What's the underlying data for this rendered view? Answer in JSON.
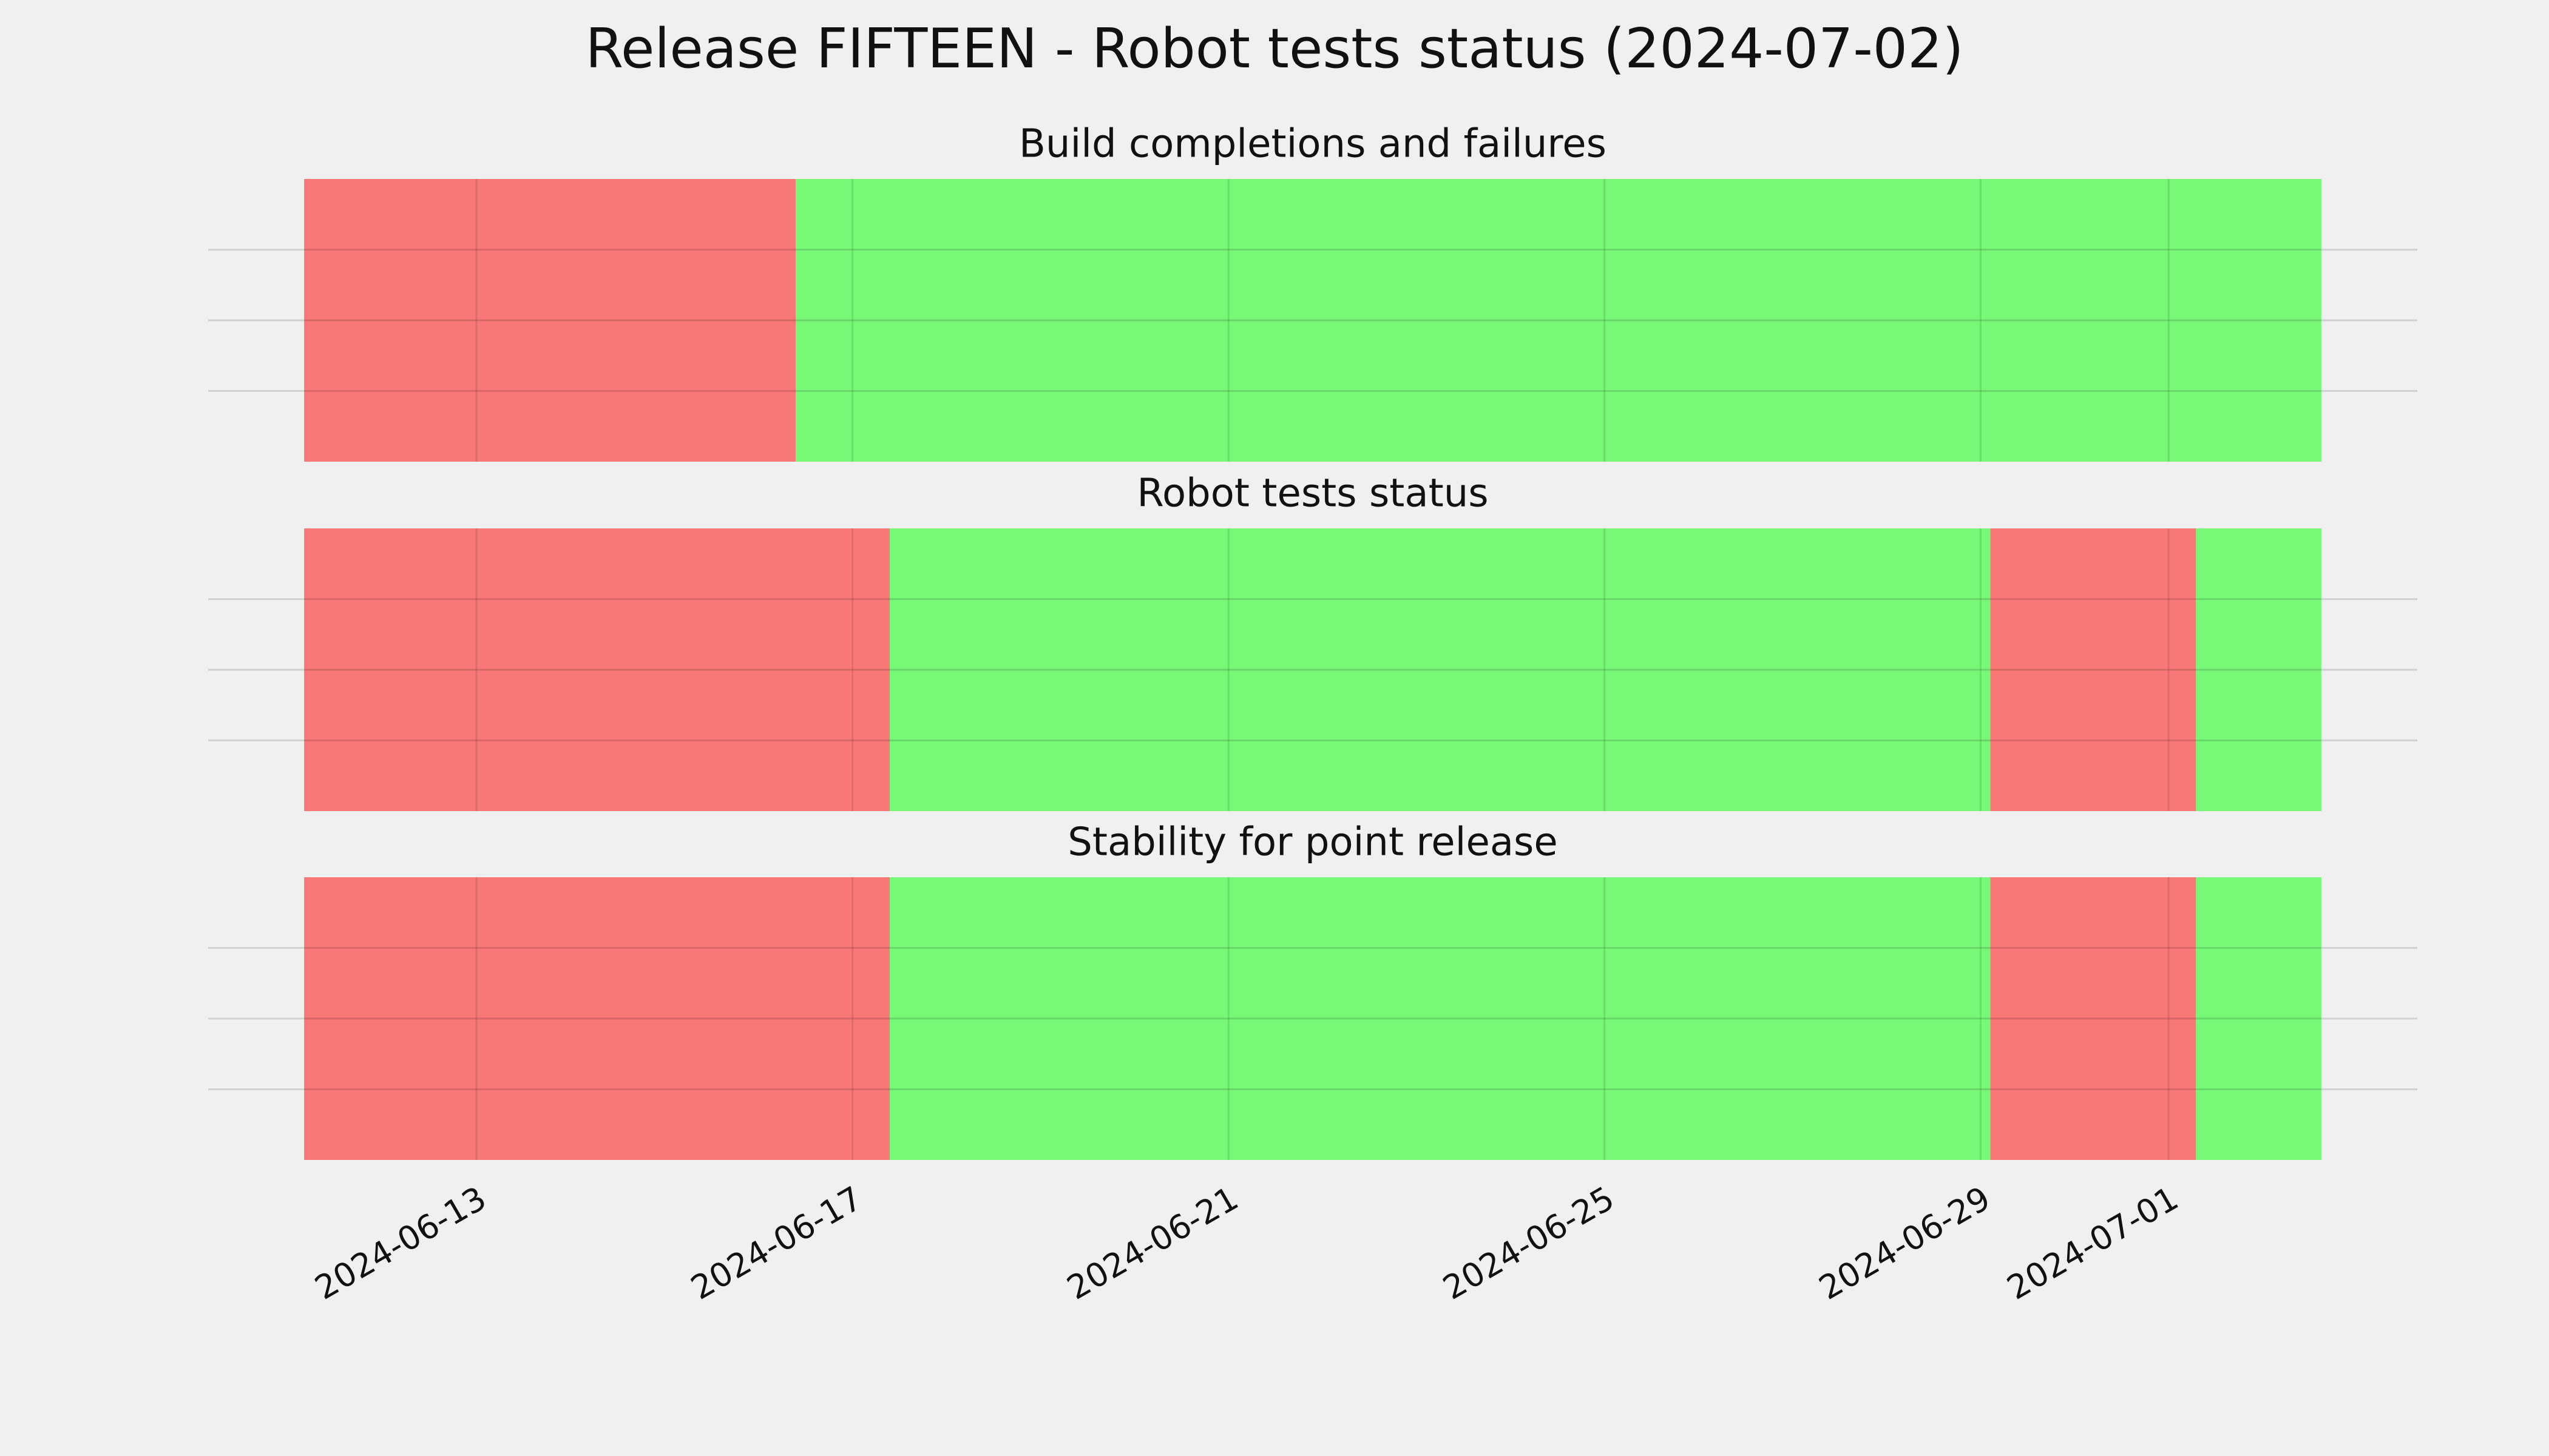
{
  "title": "Release FIFTEEN - Robot tests status (2024-07-02)",
  "chart_data": [
    {
      "type": "span",
      "title": "Build completions and failures",
      "spans": [
        {
          "start": "2024-06-11T04:00",
          "end": "2024-06-16T09:30",
          "color": "#f87777"
        },
        {
          "start": "2024-06-16T09:30",
          "end": "2024-07-02T15:00",
          "color": "#77f877"
        }
      ],
      "xlim": [
        "2024-06-10T03:30",
        "2024-07-03T15:30"
      ],
      "xticks": [
        "2024-06-13",
        "2024-06-17",
        "2024-06-21",
        "2024-06-25",
        "2024-06-29",
        "2024-07-01"
      ],
      "ylim": [
        0,
        1
      ],
      "yticks": [
        0.25,
        0.5,
        0.75
      ],
      "grid": true
    },
    {
      "type": "span",
      "title": "Robot tests status",
      "spans": [
        {
          "start": "2024-06-11T04:00",
          "end": "2024-06-17T09:30",
          "color": "#f87777"
        },
        {
          "start": "2024-06-17T09:30",
          "end": "2024-06-29T02:30",
          "color": "#77f877"
        },
        {
          "start": "2024-06-29T02:30",
          "end": "2024-07-01T07:00",
          "color": "#f87777"
        },
        {
          "start": "2024-07-01T07:00",
          "end": "2024-07-02T15:00",
          "color": "#77f877"
        }
      ],
      "xlim": [
        "2024-06-10T03:30",
        "2024-07-03T15:30"
      ],
      "xticks": [
        "2024-06-13",
        "2024-06-17",
        "2024-06-21",
        "2024-06-25",
        "2024-06-29",
        "2024-07-01"
      ],
      "ylim": [
        0,
        1
      ],
      "yticks": [
        0.25,
        0.5,
        0.75
      ],
      "grid": true
    },
    {
      "type": "span",
      "title": "Stability for point release",
      "spans": [
        {
          "start": "2024-06-11T04:00",
          "end": "2024-06-17T09:30",
          "color": "#f87777"
        },
        {
          "start": "2024-06-17T09:30",
          "end": "2024-06-29T02:30",
          "color": "#77f877"
        },
        {
          "start": "2024-06-29T02:30",
          "end": "2024-07-01T07:00",
          "color": "#f87777"
        },
        {
          "start": "2024-07-01T07:00",
          "end": "2024-07-02T15:00",
          "color": "#77f877"
        }
      ],
      "xlim": [
        "2024-06-10T03:30",
        "2024-07-03T15:30"
      ],
      "xticks": [
        "2024-06-13",
        "2024-06-17",
        "2024-06-21",
        "2024-06-25",
        "2024-06-29",
        "2024-07-01"
      ],
      "ylim": [
        0,
        1
      ],
      "yticks": [
        0.25,
        0.5,
        0.75
      ],
      "grid": true,
      "show_xticklabels": true
    }
  ]
}
